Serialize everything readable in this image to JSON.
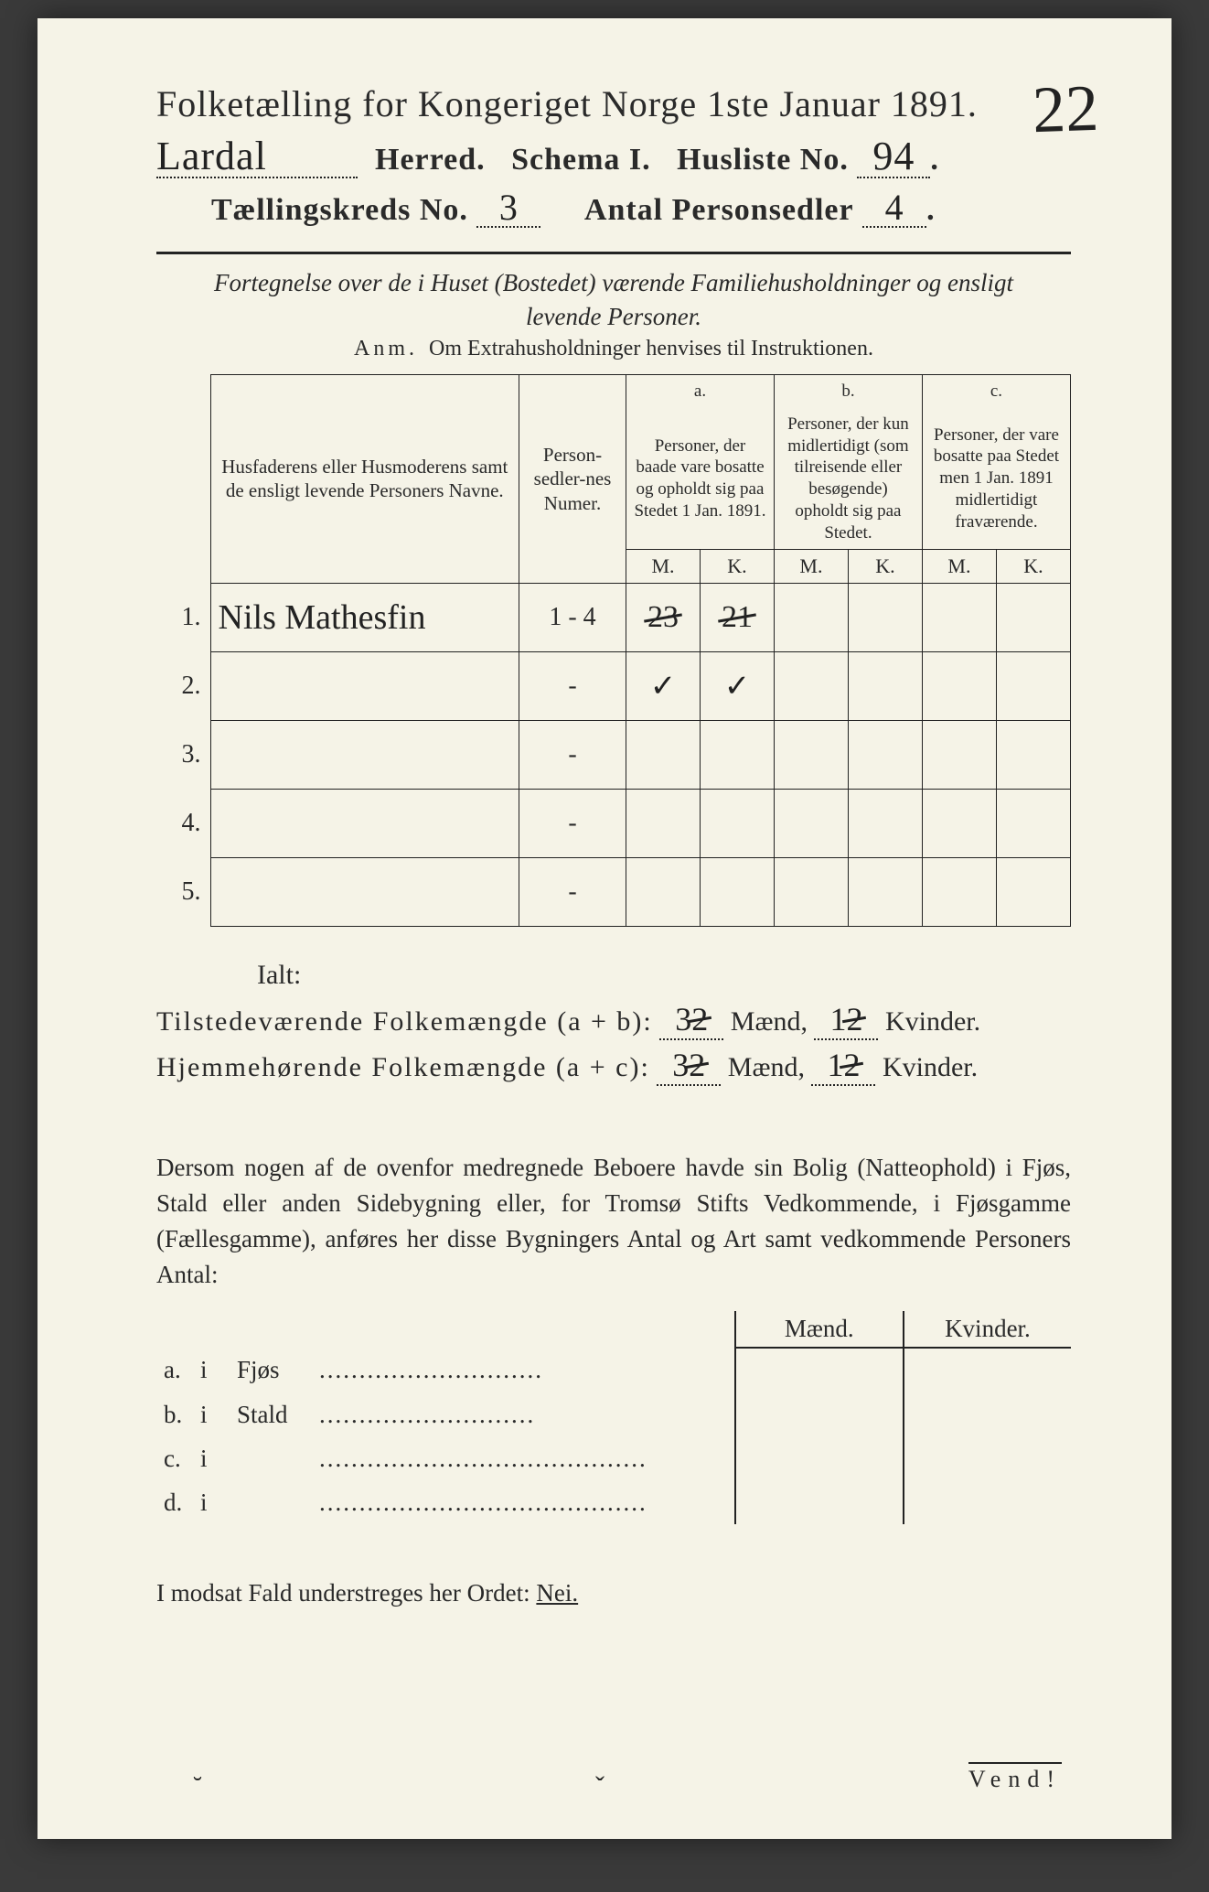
{
  "page_annotation": "22",
  "title": {
    "main": "Folketælling for Kongeriget Norge 1ste Januar 1891.",
    "herred_value": "Lardal",
    "herred_label": "Herred.",
    "schema_label": "Schema I.",
    "husliste_label": "Husliste No.",
    "husliste_value": "94",
    "kreds_label": "Tællingskreds No.",
    "kreds_value": "3",
    "antal_label": "Antal Personsedler",
    "antal_value": "4"
  },
  "intro": {
    "line1": "Fortegnelse over de i Huset (Bostedet) værende Familiehusholdninger og ensligt",
    "line2": "levende Personer.",
    "anm_label": "Anm.",
    "anm_text": "Om Extrahusholdninger henvises til Instruktionen."
  },
  "table": {
    "headers": {
      "names": "Husfaderens eller Husmoderens samt de ensligt levende Personers Navne.",
      "numer": "Person-sedler-nes Numer.",
      "a_label": "a.",
      "a_text": "Personer, der baade vare bosatte og opholdt sig paa Stedet 1 Jan. 1891.",
      "b_label": "b.",
      "b_text": "Personer, der kun midlertidigt (som tilreisende eller besøgende) opholdt sig paa Stedet.",
      "c_label": "c.",
      "c_text": "Personer, der vare bosatte paa Stedet men 1 Jan. 1891 midlertidigt fraværende.",
      "m": "M.",
      "k": "K."
    },
    "rows": [
      {
        "n": "1.",
        "name": "Nils Mathesfin",
        "numer": "1 - 4",
        "a_m": "23",
        "a_m_struck": true,
        "a_k": "21",
        "a_k_struck": true,
        "b_m": "",
        "b_k": "",
        "c_m": "",
        "c_k": ""
      },
      {
        "n": "2.",
        "name": "",
        "numer": "-",
        "a_m": "✓",
        "a_k": "✓",
        "b_m": "",
        "b_k": "",
        "c_m": "",
        "c_k": ""
      },
      {
        "n": "3.",
        "name": "",
        "numer": "-",
        "a_m": "",
        "a_k": "",
        "b_m": "",
        "b_k": "",
        "c_m": "",
        "c_k": ""
      },
      {
        "n": "4.",
        "name": "",
        "numer": "-",
        "a_m": "",
        "a_k": "",
        "b_m": "",
        "b_k": "",
        "c_m": "",
        "c_k": ""
      },
      {
        "n": "5.",
        "name": "",
        "numer": "-",
        "a_m": "",
        "a_k": "",
        "b_m": "",
        "b_k": "",
        "c_m": "",
        "c_k": ""
      }
    ]
  },
  "totals": {
    "ialt": "Ialt:",
    "line1_label": "Tilstedeværende Folkemængde (a + b):",
    "line2_label": "Hjemmehørende Folkemængde (a + c):",
    "maend_label": "Mænd,",
    "kvinder_label": "Kvinder.",
    "line1_m": "3",
    "line1_m2": "2",
    "line1_k": "1",
    "line1_k2": "2",
    "line2_m": "3",
    "line2_m2": "2",
    "line2_k": "1",
    "line2_k2": "2"
  },
  "paragraph": "Dersom nogen af de ovenfor medregnede Beboere havde sin Bolig (Natteophold) i Fjøs, Stald eller anden Sidebygning eller, for Tromsø Stifts Vedkommende, i Fjøsgamme (Fællesgamme), anføres her disse Bygningers Antal og Art samt vedkommende Personers Antal:",
  "side": {
    "maend": "Mænd.",
    "kvinder": "Kvinder.",
    "rows": [
      {
        "l": "a.",
        "i": "i",
        "t": "Fjøs",
        "dots": "............................"
      },
      {
        "l": "b.",
        "i": "i",
        "t": "Stald",
        "dots": "..........................."
      },
      {
        "l": "c.",
        "i": "i",
        "t": "",
        "dots": "........................................."
      },
      {
        "l": "d.",
        "i": "i",
        "t": "",
        "dots": "........................................."
      }
    ]
  },
  "closing": {
    "text": "I modsat Fald understreges her Ordet:",
    "nei": "Nei."
  },
  "vend": "Vend!",
  "colors": {
    "paper": "#f5f3e7",
    "ink": "#2a2a2a",
    "annotation": "#1c6fa8",
    "outer": "#3a3a3a"
  }
}
